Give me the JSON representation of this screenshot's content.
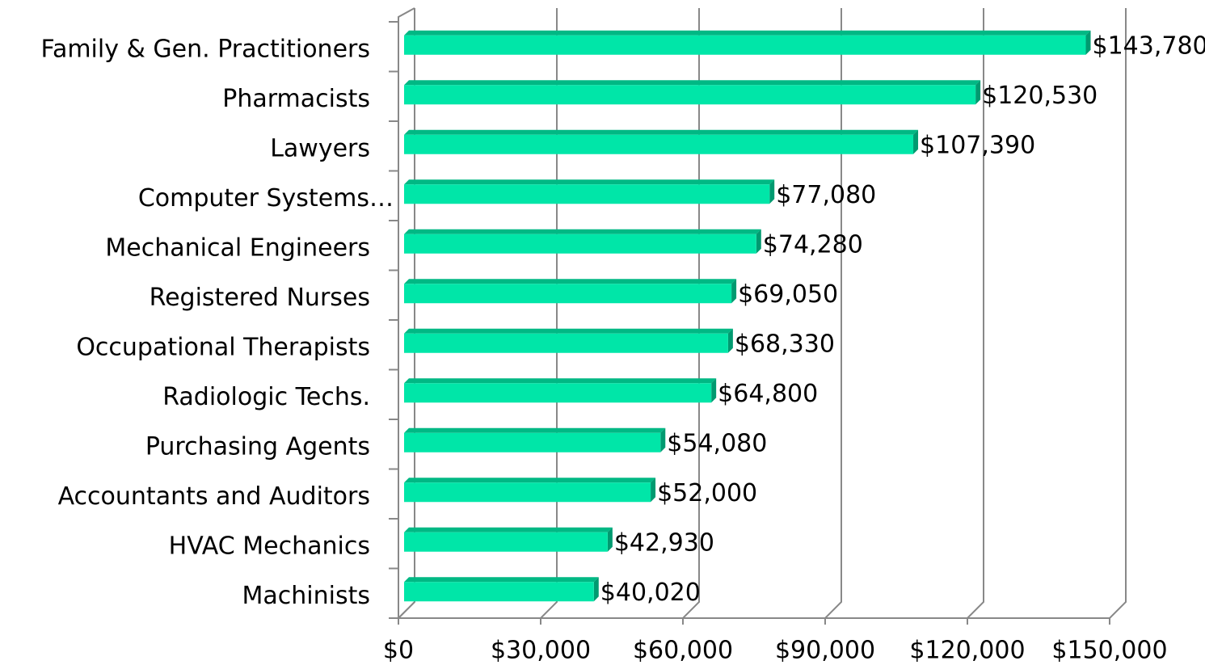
{
  "chart_data": {
    "type": "bar",
    "orientation": "horizontal",
    "categories": [
      "Family & Gen. Practitioners",
      "Pharmacists",
      "Lawyers",
      "Computer Systems…",
      "Mechanical Engineers",
      "Registered Nurses",
      "Occupational Therapists",
      "Radiologic Techs.",
      "Purchasing Agents",
      "Accountants and Auditors",
      "HVAC Mechanics",
      "Machinists"
    ],
    "values": [
      143780,
      120530,
      107390,
      77080,
      74280,
      69050,
      68330,
      64800,
      54080,
      52000,
      42930,
      40020
    ],
    "value_labels": [
      "$143,780",
      "$120,530",
      "$107,390",
      "$77,080",
      "$74,280",
      "$69,050",
      "$68,330",
      "$64,800",
      "$54,080",
      "$52,000",
      "$42,930",
      "$40,020"
    ],
    "color": "#00e6a8",
    "xlim": [
      0,
      150000
    ],
    "xticks": [
      {
        "value": 0,
        "label": "$0"
      },
      {
        "value": 30000,
        "label": "$30,000"
      },
      {
        "value": 60000,
        "label": "$60,000"
      },
      {
        "value": 90000,
        "label": "$90,000"
      },
      {
        "value": 120000,
        "label": "$120,000"
      },
      {
        "value": 150000,
        "label": "$150,000"
      }
    ],
    "grid": true
  }
}
